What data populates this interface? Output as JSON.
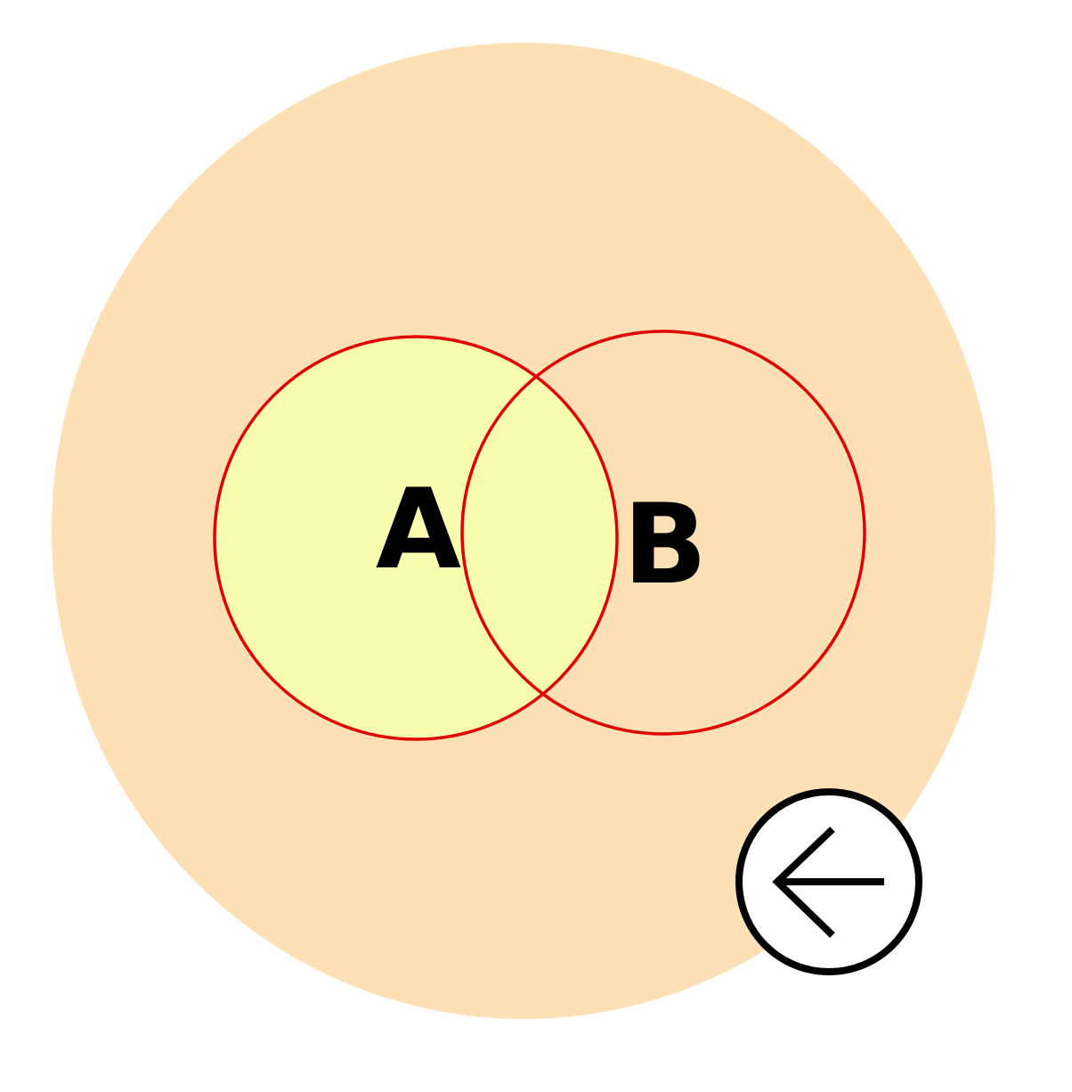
{
  "diagram": {
    "type": "venn",
    "sets": [
      {
        "id": "A",
        "label": "A",
        "shaded": true
      },
      {
        "id": "B",
        "label": "B",
        "shaded": false
      }
    ],
    "colors": {
      "universe_fill": "#fde0b5",
      "set_a_fill": "#f8fdb0",
      "circle_stroke": "#e00000",
      "label_color": "#000000",
      "page_background": "#ffffff"
    }
  },
  "controls": {
    "back_button": {
      "icon": "arrow-left-icon"
    }
  }
}
